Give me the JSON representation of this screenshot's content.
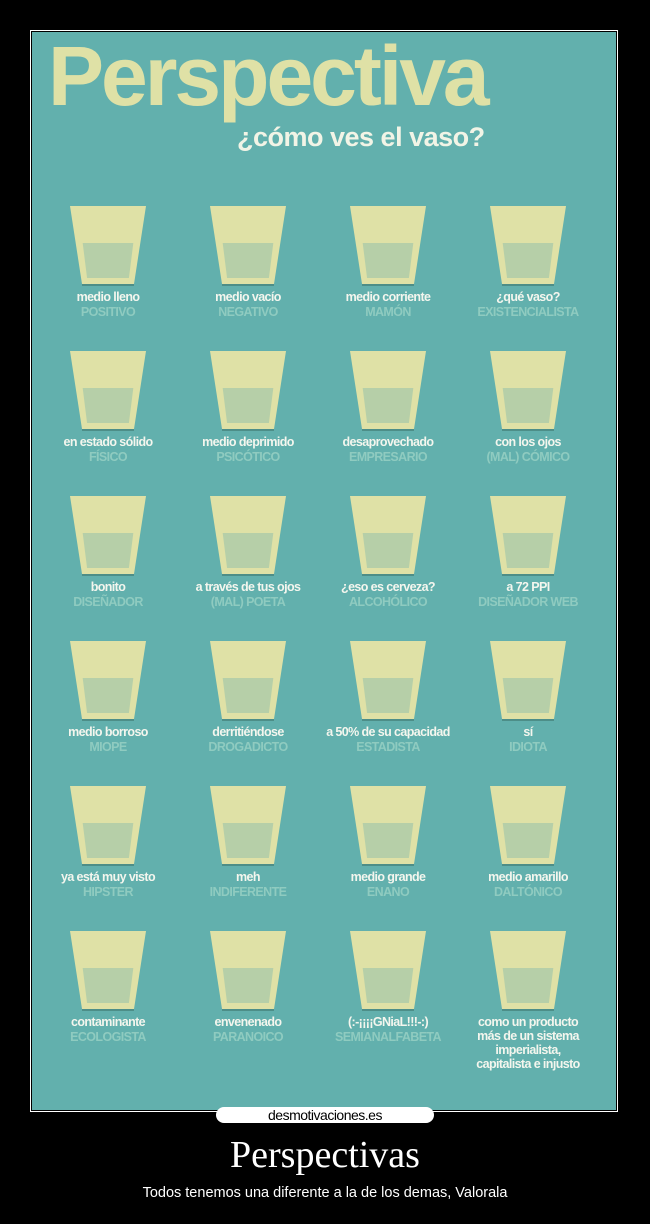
{
  "poster": {
    "title": "Perspectiva",
    "subtitle": "¿cómo ves el vaso?",
    "colors": {
      "background": "#62b0ad",
      "glass": "#dfe1a6",
      "water": "#b6cfa8",
      "label": "#f4f6ee",
      "type": "#8fcbc0"
    },
    "glass_fill_fraction": 0.5,
    "items": [
      {
        "label": "medio lleno",
        "type": "POSITIVO"
      },
      {
        "label": "medio vacío",
        "type": "NEGATIVO"
      },
      {
        "label": "medio corriente",
        "type": "MAMÓN"
      },
      {
        "label": "¿qué vaso?",
        "type": "EXISTENCIALISTA"
      },
      {
        "label": "en estado sólido",
        "type": "FÍSICO"
      },
      {
        "label": "medio deprimido",
        "type": "PSICÓTICO"
      },
      {
        "label": "desaprovechado",
        "type": "EMPRESARIO"
      },
      {
        "label": "con los ojos",
        "type": "(MAL) CÓMICO"
      },
      {
        "label": "bonito",
        "type": "DISEÑADOR"
      },
      {
        "label": "a través de tus ojos",
        "type": "(MAL) POETA"
      },
      {
        "label": "¿eso es cerveza?",
        "type": "ALCOHÓLICO"
      },
      {
        "label": "a 72 PPI",
        "type": "DISEÑADOR WEB"
      },
      {
        "label": "medio borroso",
        "type": "MIOPE"
      },
      {
        "label": "derritiéndose",
        "type": "DROGADICTO"
      },
      {
        "label": "a 50% de su capacidad",
        "type": "ESTADISTA"
      },
      {
        "label": "sí",
        "type": "IDIOTA"
      },
      {
        "label": "ya está muy visto",
        "type": "HIPSTER"
      },
      {
        "label": "meh",
        "type": "INDIFERENTE"
      },
      {
        "label": "medio grande",
        "type": "ENANO"
      },
      {
        "label": "medio amarillo",
        "type": "DALTÓNICO"
      },
      {
        "label": "contaminante",
        "type": "ECOLOGISTA"
      },
      {
        "label": "envenenado",
        "type": "PARANOICO"
      },
      {
        "label": "(:-¡¡¡¡GNiaL!!!-:)",
        "type": "SEMIANALFABETA"
      },
      {
        "label": "como un producto más de un sistema imperialista, capitalista e injusto",
        "type": ""
      }
    ]
  },
  "watermark": "desmotivaciones.es",
  "caption": {
    "title": "Perspectivas",
    "subtitle": "Todos tenemos una diferente a la de los demas, Valorala"
  }
}
